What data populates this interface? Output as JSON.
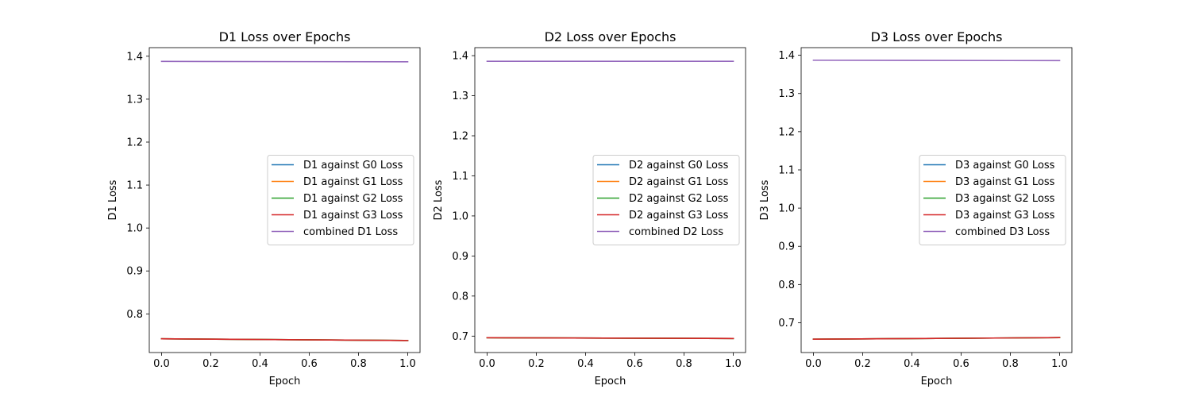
{
  "chart_data": [
    {
      "type": "line",
      "title": "D1 Loss over Epochs",
      "xlabel": "Epoch",
      "ylabel": "D1 Loss",
      "xlim": [
        -0.05,
        1.05
      ],
      "ylim": [
        0.71,
        1.42
      ],
      "xticks": [
        0.0,
        0.2,
        0.4,
        0.6,
        0.8,
        1.0
      ],
      "xtick_labels": [
        "0.0",
        "0.2",
        "0.4",
        "0.6",
        "0.8",
        "1.0"
      ],
      "yticks": [
        0.8,
        0.9,
        1.0,
        1.1,
        1.2,
        1.3,
        1.4
      ],
      "ytick_labels": [
        "0.8",
        "0.9",
        "1.0",
        "1.1",
        "1.2",
        "1.3",
        "1.4"
      ],
      "legend_position": "center-right",
      "x": [
        0.0,
        1.0
      ],
      "series": [
        {
          "name": "D1 against G0 Loss",
          "color": "#1f77b4",
          "values": [
            0.742,
            0.738
          ]
        },
        {
          "name": "D1 against G1 Loss",
          "color": "#ff7f0e",
          "values": [
            0.742,
            0.738
          ]
        },
        {
          "name": "D1 against G2 Loss",
          "color": "#2ca02c",
          "values": [
            0.742,
            0.738
          ]
        },
        {
          "name": "D1 against G3 Loss",
          "color": "#d62728",
          "values": [
            0.742,
            0.738
          ]
        },
        {
          "name": "combined D1 Loss",
          "color": "#9467bd",
          "values": [
            1.388,
            1.387
          ]
        }
      ]
    },
    {
      "type": "line",
      "title": "D2 Loss over Epochs",
      "xlabel": "Epoch",
      "ylabel": "D2 Loss",
      "xlim": [
        -0.05,
        1.05
      ],
      "ylim": [
        0.659,
        1.42
      ],
      "xticks": [
        0.0,
        0.2,
        0.4,
        0.6,
        0.8,
        1.0
      ],
      "xtick_labels": [
        "0.0",
        "0.2",
        "0.4",
        "0.6",
        "0.8",
        "1.0"
      ],
      "yticks": [
        0.7,
        0.8,
        0.9,
        1.0,
        1.1,
        1.2,
        1.3,
        1.4
      ],
      "ytick_labels": [
        "0.7",
        "0.8",
        "0.9",
        "1.0",
        "1.1",
        "1.2",
        "1.3",
        "1.4"
      ],
      "legend_position": "center-right",
      "x": [
        0.0,
        1.0
      ],
      "series": [
        {
          "name": "D2 against G0 Loss",
          "color": "#1f77b4",
          "values": [
            0.696,
            0.694
          ]
        },
        {
          "name": "D2 against G1 Loss",
          "color": "#ff7f0e",
          "values": [
            0.696,
            0.694
          ]
        },
        {
          "name": "D2 against G2 Loss",
          "color": "#2ca02c",
          "values": [
            0.696,
            0.694
          ]
        },
        {
          "name": "D2 against G3 Loss",
          "color": "#d62728",
          "values": [
            0.696,
            0.694
          ]
        },
        {
          "name": "combined D2 Loss",
          "color": "#9467bd",
          "values": [
            1.386,
            1.386
          ]
        }
      ]
    },
    {
      "type": "line",
      "title": "D3 Loss over Epochs",
      "xlabel": "Epoch",
      "ylabel": "D3 Loss",
      "xlim": [
        -0.05,
        1.05
      ],
      "ylim": [
        0.622,
        1.42
      ],
      "xticks": [
        0.0,
        0.2,
        0.4,
        0.6,
        0.8,
        1.0
      ],
      "xtick_labels": [
        "0.0",
        "0.2",
        "0.4",
        "0.6",
        "0.8",
        "1.0"
      ],
      "yticks": [
        0.7,
        0.8,
        0.9,
        1.0,
        1.1,
        1.2,
        1.3,
        1.4
      ],
      "ytick_labels": [
        "0.7",
        "0.8",
        "0.9",
        "1.0",
        "1.1",
        "1.2",
        "1.3",
        "1.4"
      ],
      "legend_position": "center-right",
      "x": [
        0.0,
        1.0
      ],
      "series": [
        {
          "name": "D3 against G0 Loss",
          "color": "#1f77b4",
          "values": [
            0.657,
            0.661
          ]
        },
        {
          "name": "D3 against G1 Loss",
          "color": "#ff7f0e",
          "values": [
            0.657,
            0.661
          ]
        },
        {
          "name": "D3 against G2 Loss",
          "color": "#2ca02c",
          "values": [
            0.657,
            0.661
          ]
        },
        {
          "name": "D3 against G3 Loss",
          "color": "#d62728",
          "values": [
            0.657,
            0.661
          ]
        },
        {
          "name": "combined D3 Loss",
          "color": "#9467bd",
          "values": [
            1.387,
            1.386
          ]
        }
      ]
    }
  ]
}
